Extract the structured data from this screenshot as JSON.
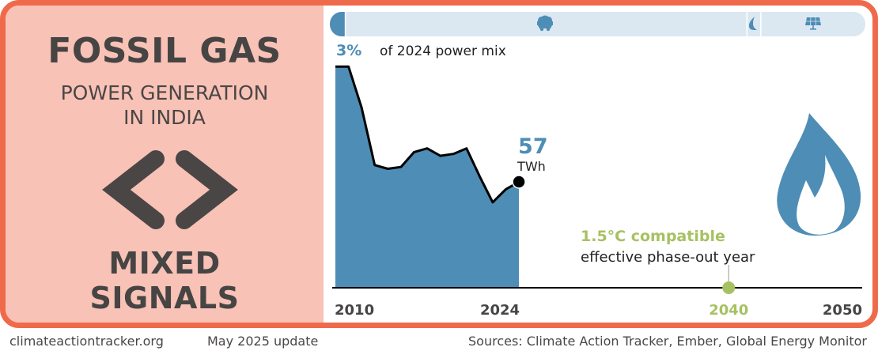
{
  "panel": {
    "title": "FOSSIL GAS",
    "subtitle_line1": "POWER GENERATION",
    "subtitle_line2": "IN INDIA",
    "signal_icon": "chevrons-left-right-icon",
    "signal_line1": "MIXED",
    "signal_line2": "SIGNALS"
  },
  "mix_bar": {
    "share_label": "3%",
    "share_text": "of 2024 power mix",
    "segments": [
      {
        "name": "gas",
        "icon": "none",
        "share": 3,
        "color": "#4e8db5"
      },
      {
        "name": "coal",
        "icon": "coal-cart-icon",
        "share": 75,
        "color": "#dce8f1"
      },
      {
        "name": "hydro",
        "icon": "water-drop-icon",
        "share": 2.6,
        "color": "#dce8f1"
      },
      {
        "name": "renewables",
        "icon": "solar-panel-icon",
        "share": 19.4,
        "color": "#dce8f1"
      }
    ]
  },
  "chart_data": {
    "type": "area",
    "title": "Fossil gas power generation in India",
    "unit": "TWh",
    "x": [
      2010,
      2011,
      2012,
      2013,
      2014,
      2015,
      2016,
      2017,
      2018,
      2019,
      2020,
      2021,
      2022,
      2023,
      2024
    ],
    "values": [
      119,
      119,
      97,
      66,
      64,
      65,
      73,
      75,
      71,
      72,
      75,
      60,
      46,
      53,
      57
    ],
    "xlim": [
      2010,
      2050
    ],
    "ylim": [
      0,
      120
    ],
    "x_tick_labels": [
      "2010",
      "2024",
      "2040",
      "2050"
    ],
    "end_value_label": "57",
    "end_unit_label": "TWh",
    "phaseout": {
      "year": 2040,
      "year_label": "2040",
      "label_line1": "1.5°C compatible",
      "label_line2": "effective phase-out year"
    },
    "icon": "flame-icon",
    "colors": {
      "area": "#4e8db5",
      "line": "#000000",
      "phaseout": "#a7c162",
      "frame": "#ef6a4b"
    }
  },
  "footer": {
    "site": "climateactiontracker.org",
    "update": "May 2025 update",
    "sources": "Sources: Climate Action Tracker, Ember, Global Energy Monitor"
  }
}
